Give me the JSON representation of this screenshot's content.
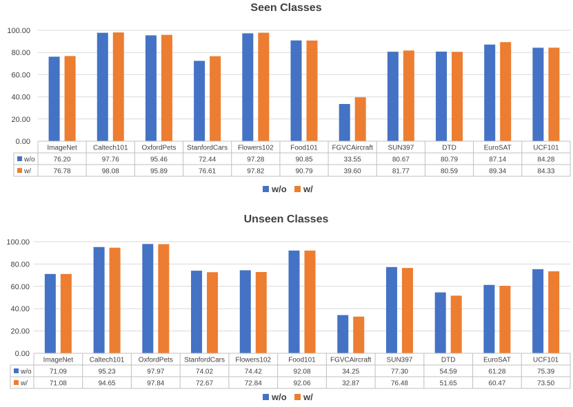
{
  "chart_data": [
    {
      "type": "bar",
      "title": "Seen Classes",
      "categories": [
        "ImageNet",
        "Caltech101",
        "OxfordPets",
        "StanfordCars",
        "Flowers102",
        "Food101",
        "FGVCAircraft",
        "SUN397",
        "DTD",
        "EuroSAT",
        "UCF101"
      ],
      "series": [
        {
          "name": "w/o",
          "color": "#4472C4",
          "values": [
            76.2,
            97.76,
            95.46,
            72.44,
            97.28,
            90.85,
            33.55,
            80.67,
            80.79,
            87.14,
            84.28
          ],
          "labels": [
            "76.20",
            "97.76",
            "95.46",
            "72.44",
            "97.28",
            "90.85",
            "33.55",
            "80.67",
            "80.79",
            "87.14",
            "84.28"
          ]
        },
        {
          "name": "w/",
          "color": "#ED7D31",
          "values": [
            76.78,
            98.08,
            95.89,
            76.61,
            97.82,
            90.79,
            39.6,
            81.77,
            80.59,
            89.34,
            84.33
          ],
          "labels": [
            "76.78",
            "98.08",
            "95.89",
            "76.61",
            "97.82",
            "90.79",
            "39.60",
            "81.77",
            "80.59",
            "89.34",
            "84.33"
          ]
        }
      ],
      "yticks": [
        "0.00",
        "20.00",
        "40.00",
        "60.00",
        "80.00",
        "100.00"
      ],
      "ylim": [
        0,
        100
      ],
      "grid": true,
      "legend": "bottom-center",
      "xlabel": "",
      "ylabel": ""
    },
    {
      "type": "bar",
      "title": "Unseen Classes",
      "categories": [
        "ImageNet",
        "Caltech101",
        "OxfordPets",
        "StanfordCars",
        "Flowers102",
        "Food101",
        "FGVCAircraft",
        "SUN397",
        "DTD",
        "EuroSAT",
        "UCF101"
      ],
      "series": [
        {
          "name": "w/o",
          "color": "#4472C4",
          "values": [
            71.09,
            95.23,
            97.97,
            74.02,
            74.42,
            92.08,
            34.25,
            77.3,
            54.59,
            61.28,
            75.39
          ],
          "labels": [
            "71.09",
            "95.23",
            "97.97",
            "74.02",
            "74.42",
            "92.08",
            "34.25",
            "77.30",
            "54.59",
            "61.28",
            "75.39"
          ]
        },
        {
          "name": "w/",
          "color": "#ED7D31",
          "values": [
            71.08,
            94.65,
            97.84,
            72.67,
            72.84,
            92.06,
            32.87,
            76.48,
            51.65,
            60.47,
            73.5
          ],
          "labels": [
            "71.08",
            "94.65",
            "97.84",
            "72.67",
            "72.84",
            "92.06",
            "32.87",
            "76.48",
            "51.65",
            "60.47",
            "73.50"
          ]
        }
      ],
      "yticks": [
        "0.00",
        "20.00",
        "40.00",
        "60.00",
        "80.00",
        "100.00"
      ],
      "ylim": [
        0,
        100
      ],
      "grid": true,
      "legend": "bottom-center",
      "xlabel": "",
      "ylabel": ""
    }
  ]
}
